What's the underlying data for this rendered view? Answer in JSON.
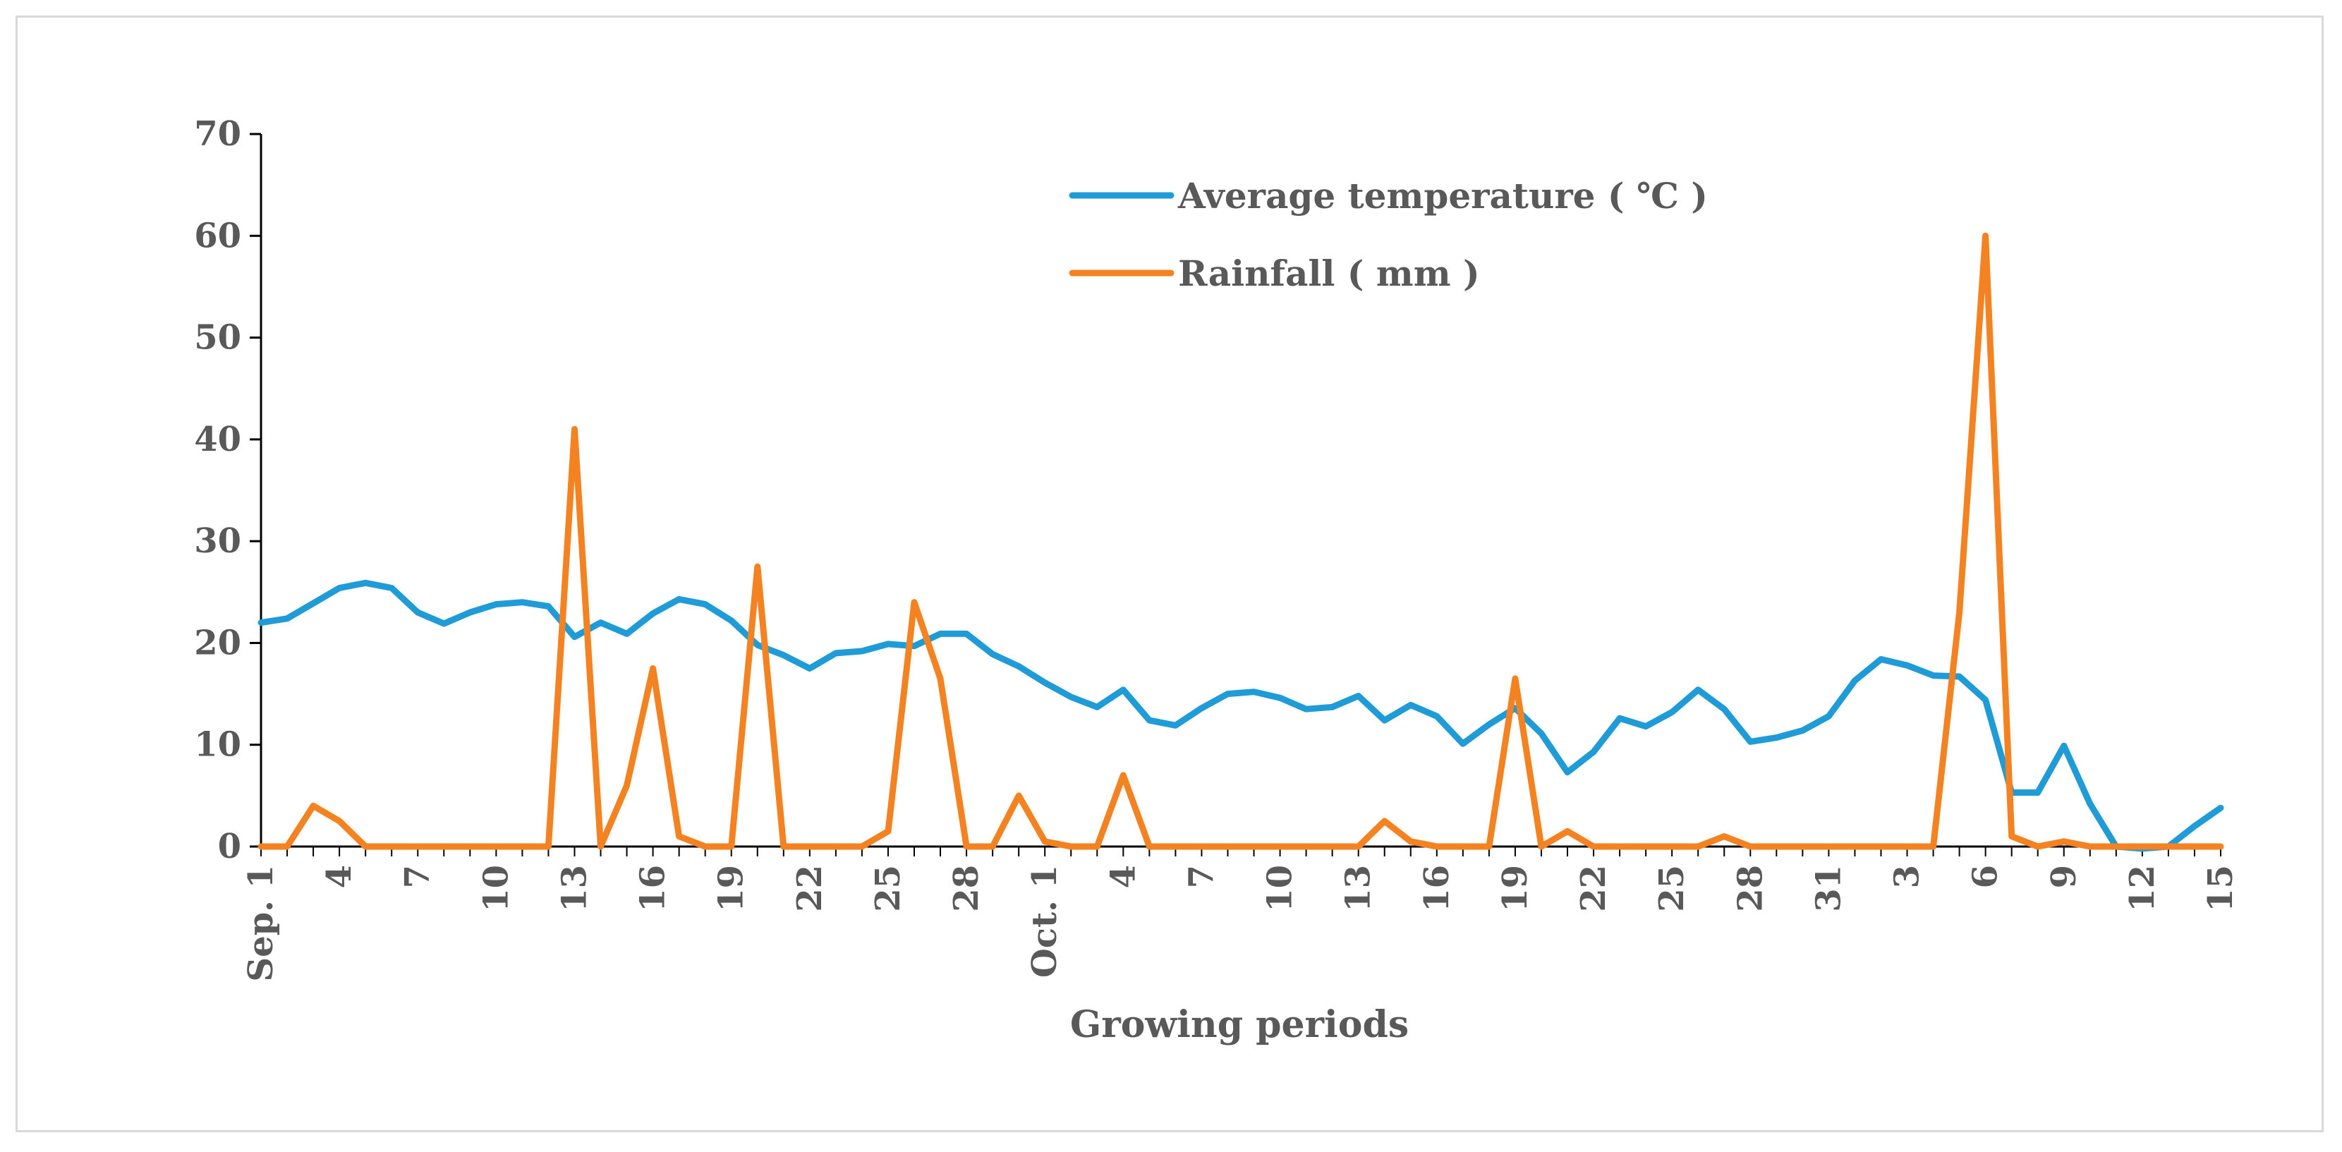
{
  "chart_data": {
    "type": "line",
    "title": "",
    "xlabel": "Growing periods",
    "ylabel": "",
    "ylim": [
      0,
      70
    ],
    "yticks": [
      0,
      10,
      20,
      30,
      40,
      50,
      60,
      70
    ],
    "grid": false,
    "legend_position": "top-right",
    "x_tick_labels": [
      "Sep. 1",
      "4",
      "7",
      "10",
      "13",
      "16",
      "19",
      "22",
      "25",
      "28",
      "Oct. 1",
      "4",
      "7",
      "10",
      "13",
      "16",
      "19",
      "22",
      "25",
      "28",
      "31",
      "3",
      "6",
      "9",
      "12",
      "15"
    ],
    "n_points": 76,
    "series": [
      {
        "name": "Average temperature ( ℃ )",
        "color": "#1f9bd7",
        "values": [
          22,
          22.4,
          23.9,
          25.4,
          25.9,
          25.4,
          23,
          21.9,
          23,
          23.8,
          24,
          23.6,
          20.6,
          22,
          20.9,
          22.9,
          24.3,
          23.8,
          22.2,
          19.8,
          18.8,
          17.5,
          19,
          19.2,
          19.9,
          19.7,
          20.9,
          20.9,
          18.9,
          17.7,
          16.1,
          14.7,
          13.7,
          15.4,
          12.4,
          11.9,
          13.6,
          15,
          15.2,
          14.6,
          13.5,
          13.7,
          14.8,
          12.4,
          13.9,
          12.8,
          10.1,
          12,
          13.6,
          11.1,
          7.3,
          9.3,
          12.6,
          11.8,
          13.2,
          15.4,
          13.5,
          10.3,
          10.7,
          11.4,
          12.8,
          16.3,
          18.4,
          17.8,
          16.8,
          16.7,
          14.4,
          5.3,
          5.3,
          9.9,
          4.2,
          0,
          -0.2,
          0,
          2,
          3.8
        ]
      },
      {
        "name": "Rainfall ( mm )",
        "color": "#f58220",
        "values": [
          0,
          0,
          4,
          2.5,
          0,
          0,
          0,
          0,
          0,
          0,
          0,
          0,
          41,
          0,
          6,
          17.5,
          1,
          0,
          0,
          27.5,
          0,
          0,
          0,
          0,
          1.5,
          24,
          16.5,
          0,
          0,
          5,
          0.5,
          0,
          0,
          7,
          0,
          0,
          0,
          0,
          0,
          0,
          0,
          0,
          0,
          2.5,
          0.5,
          0,
          0,
          0,
          16.5,
          0,
          1.5,
          0,
          0,
          0,
          0,
          0,
          1,
          0,
          0,
          0,
          0,
          0,
          0,
          0,
          0,
          23,
          60,
          1,
          0,
          0.5,
          0,
          0,
          0,
          0,
          0,
          0
        ]
      }
    ]
  }
}
